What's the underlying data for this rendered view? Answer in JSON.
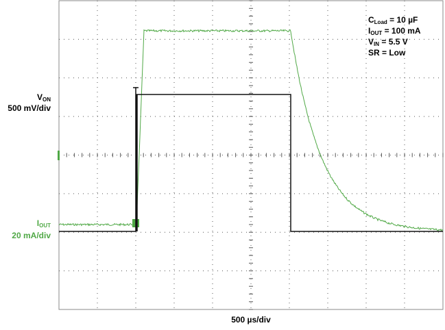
{
  "chart_data": {
    "type": "oscilloscope",
    "channels": [
      {
        "symbol": "V",
        "subscript": "ON",
        "scale": "500 mV/div",
        "color": "#111111"
      },
      {
        "symbol": "I",
        "subscript": "OUT",
        "scale": "20 mA/div",
        "color": "#4fa845"
      }
    ],
    "time_scale": "500 µs/div",
    "annotations": [
      {
        "symbol": "C",
        "subscript": "Load",
        "text": " = 10 µF"
      },
      {
        "symbol": "I",
        "subscript": "OUT",
        "text": " = 100 mA"
      },
      {
        "symbol": "V",
        "subscript": "IN",
        "text": " = 5.5 V"
      },
      {
        "symbol": "SR = Low"
      }
    ]
  }
}
